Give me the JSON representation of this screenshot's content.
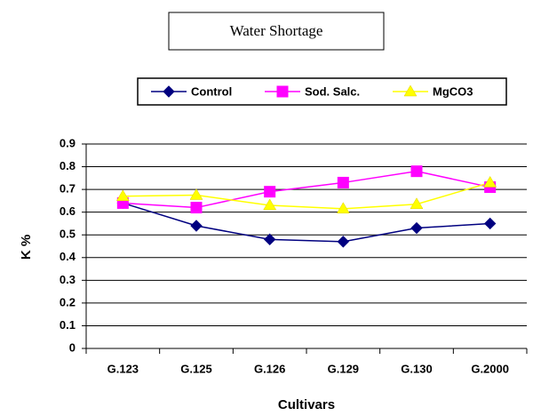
{
  "chart_data": {
    "type": "line",
    "title": "Water Shortage",
    "x_label": "Cultivars",
    "y_label": "K %",
    "categories": [
      "G.123",
      "G.125",
      "G.126",
      "G.129",
      "G.130",
      "G.2000"
    ],
    "series": [
      {
        "name": "Control",
        "color": "#000080",
        "marker": "diamond",
        "values": [
          0.64,
          0.54,
          0.48,
          0.47,
          0.53,
          0.55
        ]
      },
      {
        "name": "Sod. Salc.",
        "color": "#ff00ff",
        "marker": "square",
        "values": [
          0.64,
          0.62,
          0.69,
          0.73,
          0.78,
          0.71
        ]
      },
      {
        "name": "MgCO3",
        "color": "#ffff00",
        "marker": "triangle",
        "values": [
          0.67,
          0.675,
          0.63,
          0.615,
          0.635,
          0.73
        ]
      }
    ],
    "ylim": [
      0,
      0.9
    ],
    "yticks": [
      0,
      0.1,
      0.2,
      0.3,
      0.4,
      0.5,
      0.6,
      0.7,
      0.8,
      0.9
    ],
    "grid": true,
    "legend": "top"
  }
}
